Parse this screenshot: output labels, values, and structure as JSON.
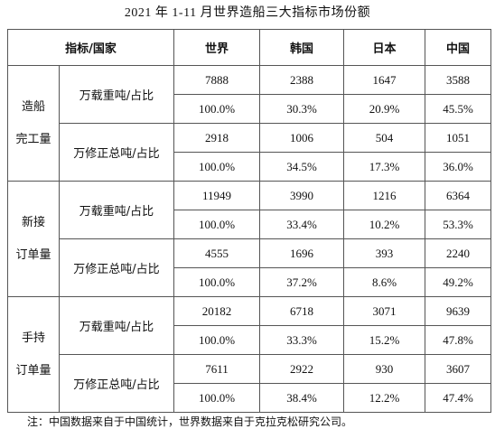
{
  "header": {
    "title": "2021 年 1-11 月世界造船三大指标市场份额"
  },
  "table": {
    "columns": [
      "指标/国家",
      "世界",
      "韩国",
      "日本",
      "中国"
    ],
    "groups": [
      {
        "label": [
          "造船",
          "完工量"
        ],
        "metrics": [
          {
            "name": "万载重吨/占比",
            "values": [
              7888,
              2388,
              1647,
              3588
            ],
            "shares": [
              "100.0%",
              "30.3%",
              "20.9%",
              "45.5%"
            ]
          },
          {
            "name": "万修正总吨/占比",
            "values": [
              2918,
              1006,
              504,
              1051
            ],
            "shares": [
              "100.0%",
              "34.5%",
              "17.3%",
              "36.0%"
            ]
          }
        ]
      },
      {
        "label": [
          "新接",
          "订单量"
        ],
        "metrics": [
          {
            "name": "万载重吨/占比",
            "values": [
              11949,
              3990,
              1216,
              6364
            ],
            "shares": [
              "100.0%",
              "33.4%",
              "10.2%",
              "53.3%"
            ]
          },
          {
            "name": "万修正总吨/占比",
            "values": [
              4555,
              1696,
              393,
              2240
            ],
            "shares": [
              "100.0%",
              "37.2%",
              "8.6%",
              "49.2%"
            ]
          }
        ]
      },
      {
        "label": [
          "手持",
          "订单量"
        ],
        "metrics": [
          {
            "name": "万载重吨/占比",
            "values": [
              20182,
              6718,
              3071,
              9639
            ],
            "shares": [
              "100.0%",
              "33.3%",
              "15.2%",
              "47.8%"
            ]
          },
          {
            "name": "万修正总吨/占比",
            "values": [
              7611,
              2922,
              930,
              3607
            ],
            "shares": [
              "100.0%",
              "38.4%",
              "12.2%",
              "47.4%"
            ]
          }
        ]
      }
    ]
  },
  "note": "注：中国数据来自于中国统计，世界数据来自于克拉克松研究公司。"
}
